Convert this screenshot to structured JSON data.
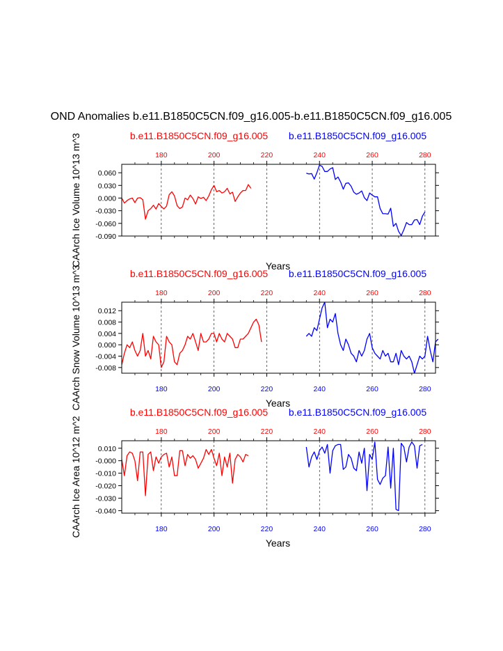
{
  "title": "OND Anomalies b.e11.B1850C5CN.f09_g16.005-b.e11.B1850C5CN.f09_g16.005",
  "colors": {
    "case1": "#ff0000",
    "case2": "#0000ff",
    "axis": "#000000",
    "grid": "#000000"
  },
  "chart_data": [
    {
      "type": "line",
      "ylabel": "CAArch Ice Volume 10^13 m^3",
      "xlabel": "Years",
      "xlim": [
        165,
        284
      ],
      "ylim": [
        -0.09,
        0.08
      ],
      "yticks": [
        -0.09,
        -0.06,
        -0.03,
        0.0,
        0.03,
        0.06
      ],
      "ytick_labels": [
        "-0.090",
        "-0.060",
        "-0.030",
        "0.000",
        "0.030",
        "0.060"
      ],
      "xticks": [
        180,
        200,
        220,
        240,
        260,
        280
      ],
      "xtick_labels": [
        "180",
        "200",
        "220",
        "240",
        "260",
        "280"
      ],
      "grid": "vertical dashed",
      "bottom_ticks_shown": false,
      "case1_label": "b.e11.B1850C5CN.f09_g16.005",
      "case2_label": "b.e11.B1850C5CN.f09_g16.005",
      "series": [
        {
          "name": "b.e11.B1850C5CN.f09_g16.005",
          "color": "#ff0000",
          "x_start": 165,
          "values": [
            0.0,
            -0.012,
            -0.006,
            -0.002,
            0.0,
            -0.011,
            0.0,
            0.001,
            -0.004,
            -0.05,
            -0.03,
            -0.025,
            -0.017,
            -0.026,
            -0.013,
            -0.02,
            -0.026,
            -0.019,
            0.008,
            0.015,
            0.005,
            -0.018,
            -0.025,
            -0.021,
            0.0,
            -0.004,
            0.007,
            -0.001,
            -0.014,
            0.003,
            -0.001,
            0.002,
            -0.006,
            0.005,
            0.02,
            0.03,
            0.015,
            0.018,
            0.012,
            0.015,
            0.023,
            0.01,
            0.014,
            -0.008,
            0.003,
            0.012,
            0.018,
            0.018,
            0.032,
            0.023
          ]
        },
        {
          "name": "b.e11.B1850C5CN.f09_g16.005",
          "color": "#0000ff",
          "x_start": 235,
          "values": [
            0.059,
            0.057,
            0.058,
            0.045,
            0.06,
            0.078,
            0.075,
            0.063,
            0.063,
            0.069,
            0.072,
            0.044,
            0.05,
            0.038,
            0.021,
            0.035,
            0.036,
            0.028,
            0.014,
            0.009,
            0.012,
            0.017,
            0.001,
            -0.006,
            0.012,
            0.007,
            0.003,
            0.003,
            -0.025,
            -0.037,
            -0.037,
            -0.038,
            -0.024,
            -0.067,
            -0.06,
            -0.079,
            -0.089,
            -0.075,
            -0.058,
            -0.063,
            -0.063,
            -0.052,
            -0.051,
            -0.063,
            -0.043,
            -0.033
          ]
        }
      ]
    },
    {
      "type": "line",
      "ylabel": "CAArch Snow Volume 10^13 m^3",
      "xlabel": "Years",
      "xlim": [
        165,
        284
      ],
      "ylim": [
        -0.01,
        0.015
      ],
      "yticks": [
        -0.008,
        -0.004,
        0.0,
        0.004,
        0.008,
        0.012
      ],
      "ytick_labels": [
        "-0.008",
        "-0.004",
        "0.000",
        "0.004",
        "0.008",
        "0.012"
      ],
      "xticks": [
        180,
        200,
        220,
        240,
        260,
        280
      ],
      "xtick_labels": [
        "180",
        "200",
        "220",
        "240",
        "260",
        "280"
      ],
      "grid": "vertical dashed",
      "bottom_ticks_shown": true,
      "case1_label": "b.e11.B1850C5CN.f09_g16.005",
      "case2_label": "b.e11.B1850C5CN.f09_g16.005",
      "series": [
        {
          "name": "b.e11.B1850C5CN.f09_g16.005",
          "color": "#ff0000",
          "x_start": 165,
          "values": [
            -0.007,
            -0.003,
            0.0,
            -0.001,
            0.001,
            -0.002,
            -0.004,
            -0.002,
            0.004,
            -0.004,
            -0.002,
            -0.005,
            0.003,
            0.001,
            0.0,
            -0.008,
            -0.006,
            0.003,
            0.001,
            0.0,
            -0.006,
            -0.007,
            -0.003,
            -0.002,
            0.0,
            0.003,
            0.002,
            0.004,
            0.001,
            -0.002,
            0.004,
            0.001,
            0.001,
            0.002,
            0.004,
            0.004,
            0.001,
            0.004,
            0.002,
            0.001,
            0.004,
            0.003,
            0.002,
            -0.001,
            -0.001,
            0.002,
            0.002,
            0.003,
            0.004,
            0.006,
            0.008,
            0.009,
            0.007,
            0.001
          ]
        },
        {
          "name": "b.e11.B1850C5CN.f09_g16.005",
          "color": "#0000ff",
          "x_start": 235,
          "values": [
            0.003,
            0.004,
            0.003,
            0.006,
            0.005,
            0.009,
            0.013,
            0.015,
            0.006,
            0.009,
            0.008,
            0.011,
            0.004,
            0.0,
            -0.002,
            0.002,
            0.0,
            -0.003,
            -0.004,
            -0.006,
            -0.002,
            -0.004,
            -0.002,
            0.002,
            0.004,
            -0.001,
            -0.003,
            -0.004,
            -0.005,
            -0.002,
            -0.004,
            -0.003,
            -0.006,
            -0.006,
            -0.003,
            -0.007,
            -0.002,
            -0.004,
            -0.005,
            -0.004,
            -0.006,
            -0.01,
            -0.007,
            -0.004,
            -0.005,
            -0.004,
            0.003,
            -0.002,
            -0.006,
            0.001,
            0.002
          ]
        }
      ]
    },
    {
      "type": "line",
      "ylabel": "CAArch Ice Area 10^12 m^2",
      "xlabel": "Years",
      "xlim": [
        165,
        284
      ],
      "ylim": [
        -0.042,
        0.016
      ],
      "yticks": [
        -0.04,
        -0.03,
        -0.02,
        -0.01,
        0.0,
        0.01
      ],
      "ytick_labels": [
        "-0.040",
        "-0.030",
        "-0.020",
        "-0.010",
        "-0.000",
        "0.010"
      ],
      "xticks": [
        180,
        200,
        220,
        240,
        260,
        280
      ],
      "xtick_labels": [
        "180",
        "200",
        "220",
        "240",
        "260",
        "280"
      ],
      "grid": "vertical dashed",
      "bottom_ticks_shown": true,
      "case1_label": "b.e11.B1850C5CN.f09_g16.005",
      "case2_label": "b.e11.B1850C5CN.f09_g16.005",
      "series": [
        {
          "name": "b.e11.B1850C5CN.f09_g16.005",
          "color": "#ff0000",
          "x_start": 165,
          "values": [
            0.001,
            -0.012,
            0.004,
            0.007,
            0.006,
            0.0,
            -0.016,
            0.007,
            0.007,
            -0.028,
            0.005,
            0.007,
            -0.008,
            0.003,
            -0.002,
            0.003,
            0.005,
            0.006,
            -0.005,
            0.003,
            -0.012,
            -0.012,
            0.008,
            0.008,
            -0.004,
            0.005,
            0.002,
            0.004,
            0.001,
            -0.006,
            -0.002,
            0.002,
            0.009,
            0.005,
            0.009,
            0.002,
            -0.004,
            0.006,
            -0.012,
            0.003,
            -0.005,
            0.006,
            -0.018,
            0.001,
            0.005,
            0.003,
            -0.001,
            0.005,
            0.004
          ]
        },
        {
          "name": "b.e11.B1850C5CN.f09_g16.005",
          "color": "#0000ff",
          "x_start": 235,
          "values": [
            0.011,
            -0.005,
            0.003,
            0.007,
            0.001,
            0.008,
            0.011,
            0.006,
            0.013,
            -0.01,
            0.008,
            0.012,
            0.013,
            0.013,
            -0.007,
            -0.005,
            0.005,
            0.002,
            -0.006,
            -0.008,
            0.007,
            -0.002,
            0.01,
            -0.024,
            0.005,
            0.001,
            0.015,
            -0.015,
            -0.019,
            -0.014,
            -0.012,
            0.011,
            -0.022,
            0.01,
            -0.039,
            -0.04,
            0.014,
            0.011,
            -0.001,
            0.011,
            0.015,
            0.012,
            -0.006,
            0.012,
            0.013
          ]
        }
      ]
    }
  ]
}
